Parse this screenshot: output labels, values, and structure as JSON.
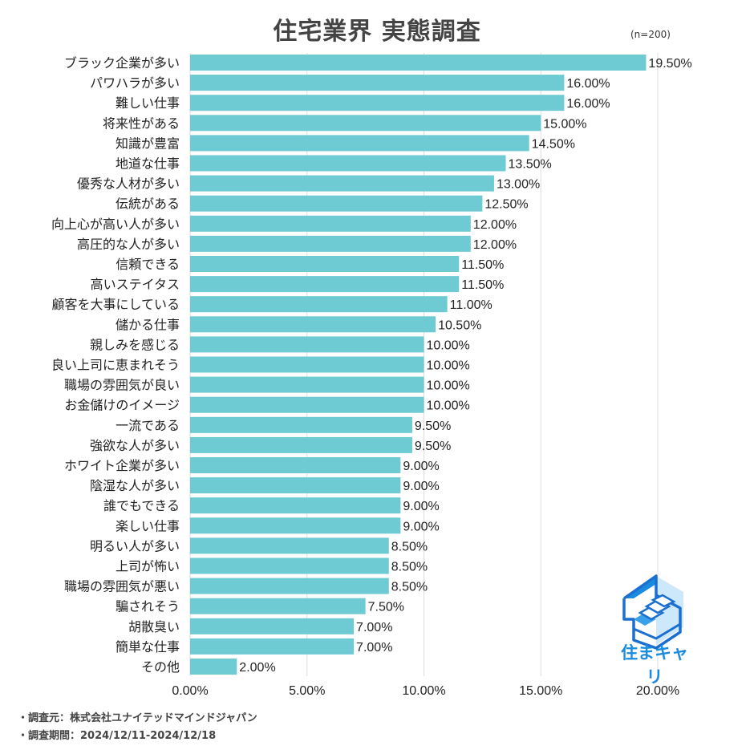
{
  "title": "住宅業界 実態調査",
  "sample_size": "(n=200)",
  "footer": {
    "source": "・調査元：株式会社ユナイテッドマインドジャパン",
    "period": "・調査期間：2024/12/11-2024/12/18"
  },
  "logo": {
    "text": "住まキャリ"
  },
  "chart_data": {
    "type": "bar",
    "orientation": "horizontal",
    "categories": [
      "ブラック企業が多い",
      "パワハラが多い",
      "難しい仕事",
      "将来性がある",
      "知識が豊富",
      "地道な仕事",
      "優秀な人材が多い",
      "伝統がある",
      "向上心が高い人が多い",
      "高圧的な人が多い",
      "信頼できる",
      "高いステイタス",
      "顧客を大事にしている",
      "儲かる仕事",
      "親しみを感じる",
      "良い上司に恵まれそう",
      "職場の雰囲気が良い",
      "お金儲けのイメージ",
      "一流である",
      "強欲な人が多い",
      "ホワイト企業が多い",
      "陰湿な人が多い",
      "誰でもできる",
      "楽しい仕事",
      "明るい人が多い",
      "上司が怖い",
      "職場の雰囲気が悪い",
      "騙されそう",
      "胡散臭い",
      "簡単な仕事",
      "その他"
    ],
    "values": [
      19.5,
      16.0,
      16.0,
      15.0,
      14.5,
      13.5,
      13.0,
      12.5,
      12.0,
      12.0,
      11.5,
      11.5,
      11.0,
      10.5,
      10.0,
      10.0,
      10.0,
      10.0,
      9.5,
      9.5,
      9.0,
      9.0,
      9.0,
      9.0,
      8.5,
      8.5,
      8.5,
      7.5,
      7.0,
      7.0,
      2.0
    ],
    "data_labels": [
      "19.50%",
      "16.00%",
      "16.00%",
      "15.00%",
      "14.50%",
      "13.50%",
      "13.00%",
      "12.50%",
      "12.00%",
      "12.00%",
      "11.50%",
      "11.50%",
      "11.00%",
      "10.50%",
      "10.00%",
      "10.00%",
      "10.00%",
      "10.00%",
      "9.50%",
      "9.50%",
      "9.00%",
      "9.00%",
      "9.00%",
      "9.00%",
      "8.50%",
      "8.50%",
      "8.50%",
      "7.50%",
      "7.00%",
      "7.00%",
      "2.00%"
    ],
    "x_ticks": [
      "0.00%",
      "5.00%",
      "10.00%",
      "15.00%",
      "20.00%"
    ],
    "x_tick_values": [
      0,
      5,
      10,
      15,
      20
    ],
    "xlim": [
      0,
      20
    ],
    "grid": "vertical",
    "bar_color": "#6ecbd3",
    "grid_color": "#dddddd"
  }
}
